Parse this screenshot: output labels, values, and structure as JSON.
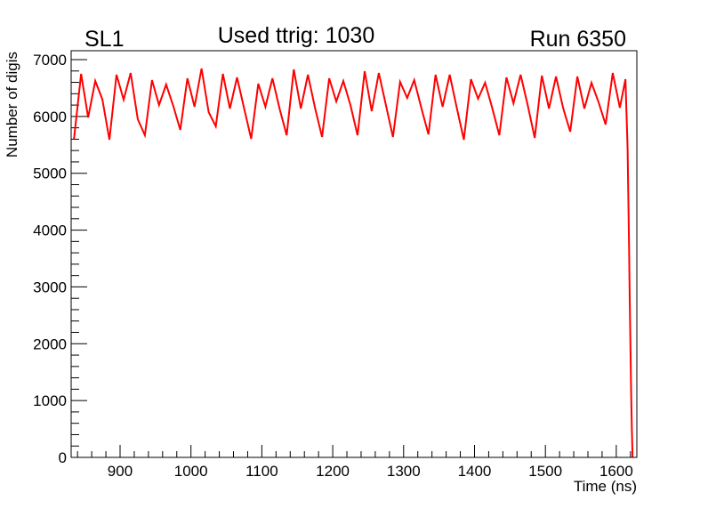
{
  "chart_data": {
    "type": "line",
    "title": "Used ttrig: 1030",
    "left_label": "SL1",
    "right_label": "Run 6350",
    "xlabel": "Time (ns)",
    "ylabel": "Number of digis",
    "xlim": [
      831,
      1629
    ],
    "ylim": [
      0,
      7000
    ],
    "grid": false,
    "legend": "none",
    "line_color": "#ff0000",
    "x_ticks": [
      900,
      1000,
      1100,
      1200,
      1300,
      1400,
      1500,
      1600
    ],
    "x_tick_labels": [
      "900",
      "1000",
      "1100",
      "1200",
      "1300",
      "1400",
      "1500",
      "1600"
    ],
    "y_ticks": [
      0,
      1000,
      2000,
      3000,
      4000,
      5000,
      6000,
      7000
    ],
    "y_tick_labels": [
      "0",
      "1000",
      "2000",
      "3000",
      "4000",
      "5000",
      "6000",
      "7000"
    ],
    "series": [
      {
        "name": "digis",
        "x": [
          835,
          845,
          855,
          865,
          875,
          885,
          895,
          905,
          915,
          925,
          935,
          945,
          955,
          965,
          975,
          985,
          995,
          1005,
          1015,
          1025,
          1035,
          1045,
          1055,
          1065,
          1075,
          1085,
          1095,
          1105,
          1115,
          1125,
          1135,
          1145,
          1155,
          1165,
          1175,
          1185,
          1195,
          1205,
          1215,
          1225,
          1235,
          1245,
          1255,
          1265,
          1275,
          1285,
          1295,
          1305,
          1315,
          1325,
          1335,
          1345,
          1355,
          1365,
          1375,
          1385,
          1395,
          1405,
          1415,
          1425,
          1435,
          1445,
          1455,
          1465,
          1475,
          1485,
          1495,
          1505,
          1515,
          1525,
          1535,
          1545,
          1555,
          1565,
          1575,
          1585,
          1595,
          1605,
          1613,
          1616,
          1617,
          1618,
          1619,
          1620,
          1621,
          1622,
          1623
        ],
        "y": [
          5606,
          6749,
          5982,
          6624,
          6300,
          5591,
          6734,
          6295,
          6765,
          5951,
          5669,
          6640,
          6201,
          6562,
          6186,
          5763,
          6671,
          6170,
          6843,
          6076,
          5826,
          6749,
          6139,
          6687,
          6139,
          5606,
          6577,
          6170,
          6671,
          6139,
          5669,
          6828,
          6139,
          6734,
          6150,
          5638,
          6671,
          6264,
          6624,
          6200,
          5669,
          6796,
          6092,
          6765,
          6200,
          5638,
          6609,
          6327,
          6640,
          6150,
          5685,
          6734,
          6170,
          6734,
          6150,
          5591,
          6656,
          6311,
          6593,
          6150,
          5669,
          6687,
          6233,
          6734,
          6200,
          5622,
          6718,
          6139,
          6702,
          6150,
          5732,
          6702,
          6139,
          6593,
          6250,
          5857,
          6765,
          6154,
          6656,
          5434,
          4588,
          3758,
          2787,
          1957,
          1128,
          500,
          0
        ]
      }
    ]
  }
}
